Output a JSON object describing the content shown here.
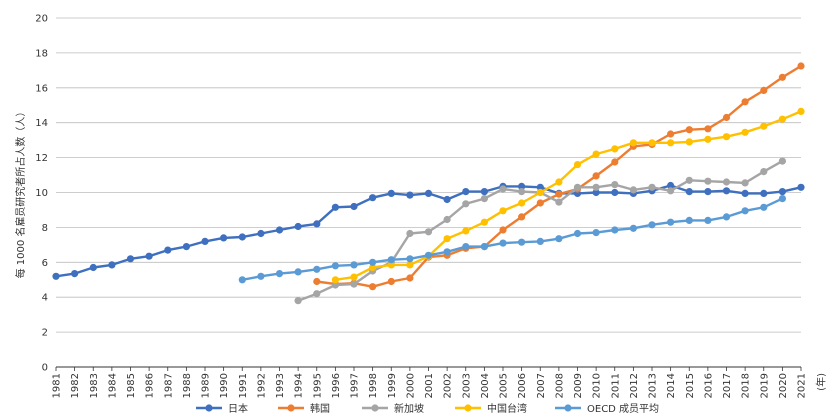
{
  "chart_data": {
    "type": "line",
    "ylabel": "每 1000 名雇员研究者所占人数（人）",
    "x_unit": "(年)",
    "ylim": [
      0,
      20
    ],
    "yticks": [
      "0",
      "2",
      "4",
      "6",
      "8",
      "10",
      "12",
      "14",
      "16",
      "18",
      "20"
    ],
    "x": [
      "1981",
      "1982",
      "1983",
      "1984",
      "1985",
      "1986",
      "1987",
      "1988",
      "1989",
      "1990",
      "1991",
      "1992",
      "1993",
      "1994",
      "1995",
      "1996",
      "1997",
      "1998",
      "1999",
      "2000",
      "2001",
      "2002",
      "2003",
      "2004",
      "2005",
      "2006",
      "2007",
      "2008",
      "2009",
      "2010",
      "2011",
      "2012",
      "2013",
      "2014",
      "2015",
      "2016",
      "2017",
      "2018",
      "2019",
      "2020",
      "2021"
    ],
    "grid": "horizontal",
    "legend_position": "bottom",
    "series": [
      {
        "name": "日本",
        "color": "#3f6fbf",
        "values": [
          5.2,
          5.35,
          5.7,
          5.85,
          6.2,
          6.35,
          6.7,
          6.9,
          7.2,
          7.4,
          7.45,
          7.65,
          7.85,
          8.05,
          8.2,
          9.15,
          9.2,
          9.7,
          9.95,
          9.85,
          9.95,
          9.6,
          10.05,
          10.05,
          10.35,
          10.35,
          10.3,
          9.95,
          9.95,
          10.0,
          10.0,
          9.95,
          10.1,
          10.4,
          10.05,
          10.05,
          10.1,
          9.95,
          9.95,
          10.05,
          10.3
        ]
      },
      {
        "name": "韩国",
        "color": "#ed7d31",
        "values": [
          null,
          null,
          null,
          null,
          null,
          null,
          null,
          null,
          null,
          null,
          null,
          null,
          null,
          null,
          4.9,
          4.75,
          4.8,
          4.6,
          4.9,
          5.1,
          6.3,
          6.4,
          6.8,
          6.9,
          7.85,
          8.6,
          9.4,
          9.9,
          10.2,
          10.95,
          11.75,
          12.65,
          12.75,
          13.35,
          13.6,
          13.65,
          14.3,
          15.2,
          15.85,
          16.6,
          17.25
        ]
      },
      {
        "name": "新加坡",
        "color": "#a5a5a5",
        "values": [
          null,
          null,
          null,
          null,
          null,
          null,
          null,
          null,
          null,
          null,
          null,
          null,
          null,
          3.8,
          4.2,
          4.7,
          4.75,
          5.5,
          6.0,
          7.65,
          7.75,
          8.45,
          9.35,
          9.65,
          10.2,
          10.05,
          10.0,
          9.45,
          10.3,
          10.3,
          10.45,
          10.15,
          10.3,
          10.1,
          10.7,
          10.65,
          10.6,
          10.55,
          11.2,
          11.8,
          null
        ]
      },
      {
        "name": "中国台湾",
        "color": "#ffc000",
        "values": [
          null,
          null,
          null,
          null,
          null,
          null,
          null,
          null,
          null,
          null,
          null,
          null,
          null,
          null,
          null,
          5.0,
          5.15,
          5.7,
          5.85,
          5.85,
          6.35,
          7.35,
          7.8,
          8.3,
          8.95,
          9.4,
          10.0,
          10.6,
          11.6,
          12.2,
          12.5,
          12.85,
          12.85,
          12.85,
          12.9,
          13.05,
          13.2,
          13.45,
          13.8,
          14.2,
          14.65
        ]
      },
      {
        "name": "OECD 成员平均",
        "color": "#5b9bd5",
        "values": [
          null,
          null,
          null,
          null,
          null,
          null,
          null,
          null,
          null,
          null,
          5.0,
          5.2,
          5.35,
          5.45,
          5.6,
          5.8,
          5.85,
          6.0,
          6.15,
          6.2,
          6.4,
          6.6,
          6.9,
          6.9,
          7.1,
          7.15,
          7.2,
          7.35,
          7.65,
          7.7,
          7.85,
          7.95,
          8.15,
          8.3,
          8.4,
          8.4,
          8.6,
          8.95,
          9.15,
          9.65,
          null
        ]
      }
    ]
  }
}
